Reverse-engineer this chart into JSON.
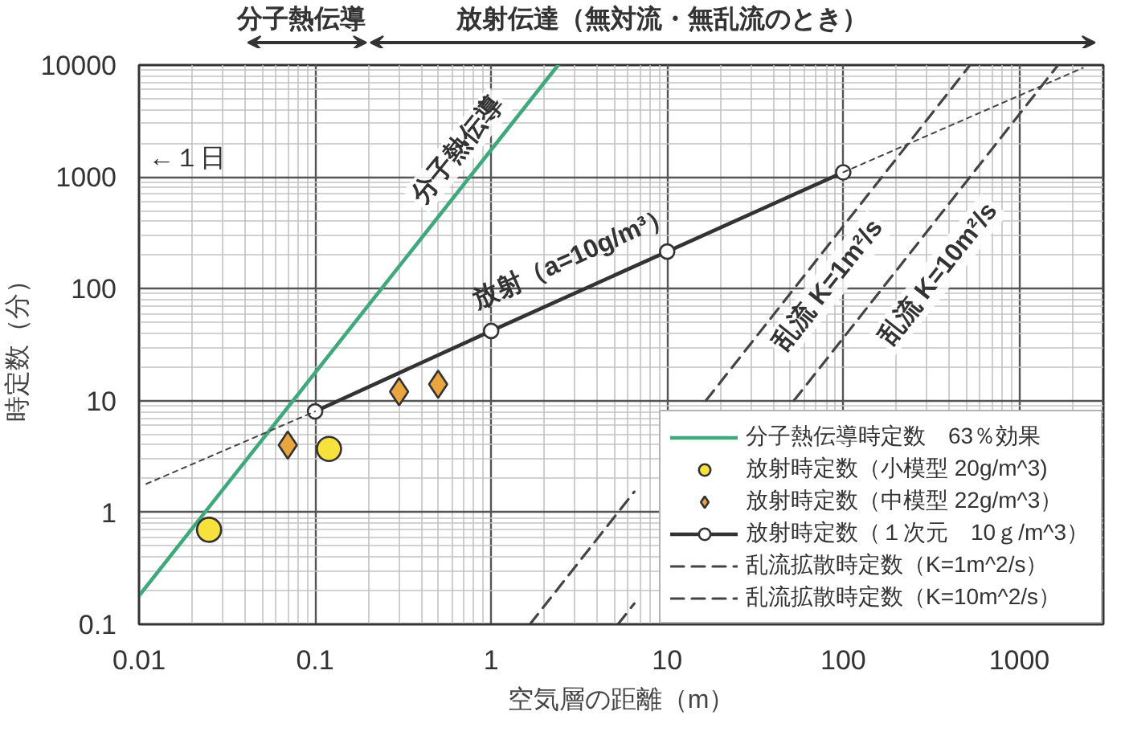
{
  "chart_data": {
    "type": "line",
    "xlabel": "空気層の距離（m）",
    "ylabel": "時定数（分）",
    "log": "xy",
    "xlim": [
      0.01,
      3000
    ],
    "ylim": [
      0.1,
      10000
    ],
    "xticks": [
      0.01,
      0.1,
      1,
      10,
      100,
      1000
    ],
    "yticks": [
      0.1,
      1,
      10,
      100,
      1000,
      10000
    ],
    "grid": true,
    "legend": "bottom right",
    "series": [
      {
        "name": "分子熱伝導時定数　63％効果",
        "color": "#3fa97c",
        "line_style": "solid",
        "x": [
          0.01,
          2.4
        ],
        "values": [
          0.18,
          10000
        ]
      },
      {
        "name": "放射時定数（小模型 20g/m^3)",
        "type": "scatter",
        "marker": "circle",
        "color": "#f6e13d",
        "x": [
          0.025,
          0.12
        ],
        "values": [
          0.7,
          3.7
        ]
      },
      {
        "name": "放射時定数（中模型 22g/m^3）",
        "type": "scatter",
        "marker": "diamond",
        "color": "#e9a53f",
        "x": [
          0.07,
          0.3,
          0.5
        ],
        "values": [
          4,
          12,
          14
        ]
      },
      {
        "name": "放射時定数（１次元　10ｇ/m^3）",
        "marker": "circle",
        "color": "#333333",
        "line_style": "solid",
        "x": [
          0.1,
          1,
          10,
          100
        ],
        "values": [
          8,
          42,
          215,
          1100
        ]
      },
      {
        "name": "乱流拡散時定数（K=1m^2/s）",
        "color": "#444444",
        "line_style": "dashed",
        "x": [
          1.66,
          6.5,
          10,
          16.6,
          525
        ],
        "values": [
          0.1,
          1.53,
          null,
          10,
          10000
        ]
      },
      {
        "name": "乱流拡散時定数（K=10m^2/s）",
        "color": "#444444",
        "line_style": "dashed",
        "x": [
          5.25,
          6.5,
          20,
          52.5,
          1660
        ],
        "values": [
          0.1,
          0.153,
          null,
          10,
          10000
        ]
      },
      {
        "color": "#444444",
        "line_style": "dotted",
        "x": [
          0.011,
          0.1
        ],
        "values": [
          1.8,
          8
        ]
      },
      {
        "color": "#444444",
        "line_style": "dotted",
        "x": [
          100,
          2300
        ],
        "values": [
          1100,
          9450
        ]
      }
    ],
    "annotations": [
      "分子熱伝導",
      "放射伝達（無対流・無乱流のとき）",
      "←１日",
      "分子熱伝導",
      "放射（a=10g/m³）",
      "乱流 K=1m²/s",
      "乱流 K=10m²/s"
    ]
  }
}
